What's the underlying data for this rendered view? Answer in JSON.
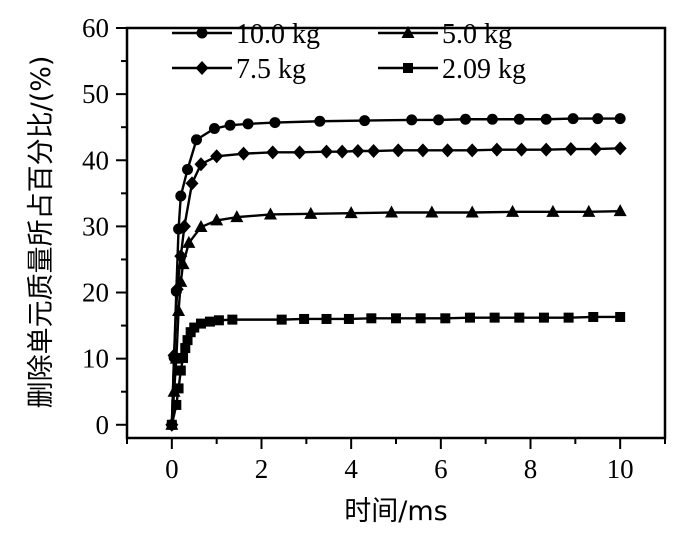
{
  "chart_data": {
    "type": "line",
    "xlabel": "时间/ms",
    "ylabel": "删除单元质量所占百分比/(%)",
    "xlim": [
      -1,
      11
    ],
    "ylim": [
      -2,
      60
    ],
    "xticks": [
      0,
      2,
      4,
      6,
      8,
      10
    ],
    "yticks": [
      0,
      10,
      20,
      30,
      40,
      50,
      60
    ],
    "grid": false,
    "legend_position": "top",
    "series": [
      {
        "name": "10.0 kg",
        "marker": "circle",
        "x": [
          0.0,
          0.05,
          0.1,
          0.15,
          0.2,
          0.35,
          0.55,
          0.95,
          1.3,
          1.7,
          2.3,
          3.3,
          4.3,
          5.35,
          5.95,
          6.55,
          7.15,
          7.75,
          8.35,
          8.95,
          9.5,
          10.0
        ],
        "y": [
          0,
          10.2,
          20.2,
          29.6,
          34.6,
          38.6,
          43.1,
          44.8,
          45.3,
          45.5,
          45.7,
          45.9,
          46.0,
          46.1,
          46.1,
          46.2,
          46.2,
          46.2,
          46.2,
          46.3,
          46.3,
          46.3
        ]
      },
      {
        "name": "7.5 kg",
        "marker": "diamond",
        "x": [
          0.0,
          0.05,
          0.12,
          0.2,
          0.28,
          0.45,
          0.65,
          1.0,
          1.6,
          2.25,
          2.85,
          3.45,
          3.8,
          4.15,
          4.5,
          5.05,
          5.6,
          6.15,
          6.7,
          7.25,
          7.8,
          8.35,
          8.9,
          9.45,
          10.0
        ],
        "y": [
          0,
          10.5,
          20.5,
          25.5,
          30.0,
          36.5,
          39.4,
          40.6,
          41.0,
          41.2,
          41.2,
          41.3,
          41.3,
          41.4,
          41.4,
          41.5,
          41.5,
          41.5,
          41.5,
          41.6,
          41.6,
          41.6,
          41.7,
          41.7,
          41.8
        ]
      },
      {
        "name": "5.0 kg",
        "marker": "triangle",
        "x": [
          0.0,
          0.05,
          0.1,
          0.15,
          0.2,
          0.25,
          0.38,
          0.65,
          1.0,
          1.45,
          2.2,
          3.1,
          4.0,
          4.9,
          5.8,
          6.7,
          7.6,
          8.5,
          9.3,
          10.0
        ],
        "y": [
          0,
          5.0,
          10.0,
          17.2,
          21.6,
          24.3,
          27.5,
          29.9,
          30.9,
          31.4,
          31.8,
          31.9,
          32.0,
          32.1,
          32.1,
          32.1,
          32.2,
          32.2,
          32.2,
          32.3
        ]
      },
      {
        "name": "2.09 kg",
        "marker": "square",
        "x": [
          0.0,
          0.1,
          0.15,
          0.2,
          0.25,
          0.3,
          0.35,
          0.42,
          0.5,
          0.65,
          0.85,
          1.05,
          1.35,
          2.45,
          2.95,
          3.45,
          3.95,
          4.45,
          5.0,
          5.55,
          6.1,
          6.65,
          7.2,
          7.75,
          8.3,
          8.85,
          9.4,
          10.0
        ],
        "y": [
          0,
          3.0,
          5.5,
          8.2,
          10.1,
          11.6,
          12.8,
          14.0,
          14.7,
          15.3,
          15.6,
          15.8,
          15.9,
          15.9,
          16.0,
          16.0,
          16.0,
          16.1,
          16.1,
          16.1,
          16.1,
          16.2,
          16.2,
          16.2,
          16.2,
          16.2,
          16.3,
          16.3
        ]
      }
    ]
  },
  "colors": {
    "ink": "#000000",
    "background": "#ffffff"
  }
}
